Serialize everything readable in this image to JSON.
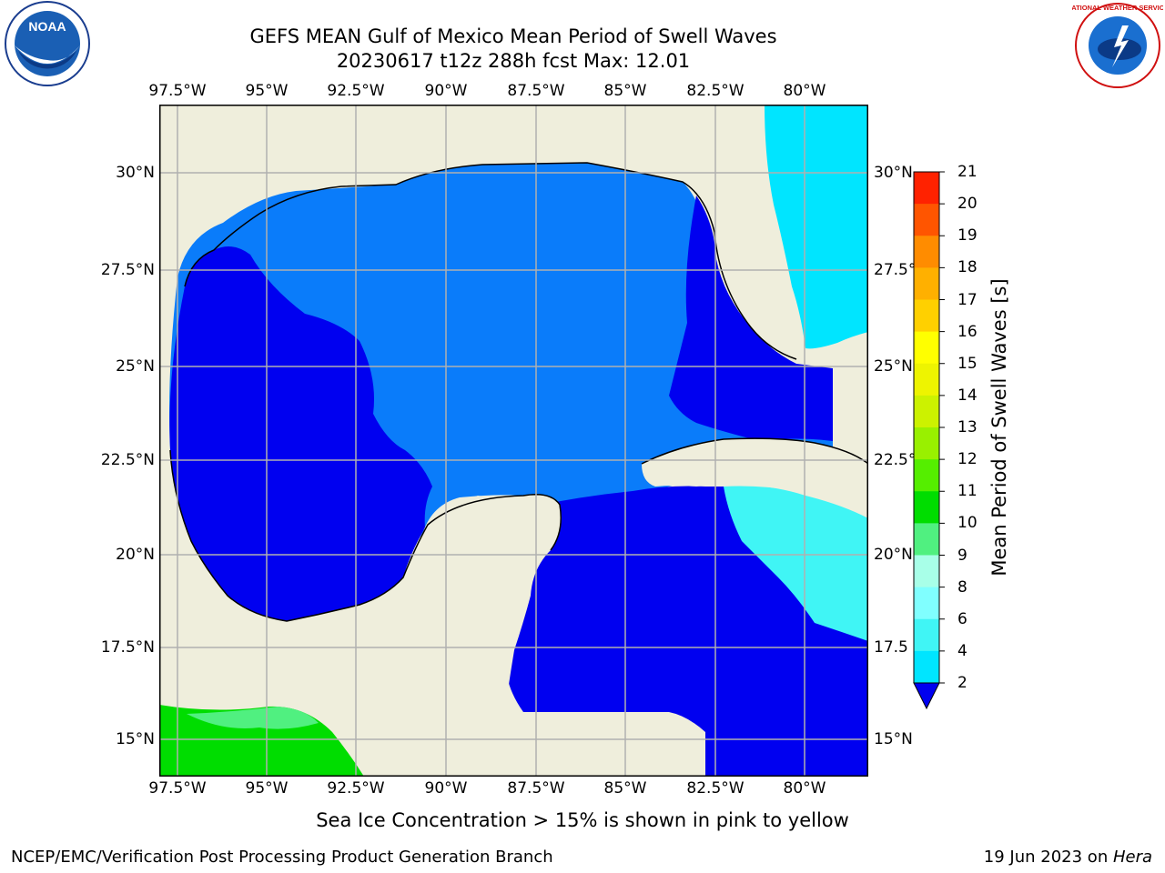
{
  "title_line1": "GEFS MEAN Gulf of Mexico Mean Period of Swell Waves",
  "title_line2": "20230617 t12z 288h fcst   Max: 12.01",
  "logos": {
    "left": "noaa-logo",
    "right": "national-weather-service-logo"
  },
  "logo_text": {
    "noaa": "NOAA",
    "nws": "NATIONAL WEATHER SERVICE"
  },
  "lon_ticks": [
    "97.5°W",
    "95°W",
    "92.5°W",
    "90°W",
    "87.5°W",
    "85°W",
    "82.5°W",
    "80°W"
  ],
  "lat_ticks_left": [
    "30°N",
    "27.5°N",
    "25°N",
    "22.5°N",
    "20°N",
    "17.5°N",
    "15°N"
  ],
  "lat_ticks_right": [
    "30°N",
    "27.5°",
    "25°N",
    "22.5°",
    "20°N",
    "17.5",
    "15°N"
  ],
  "colorbar": {
    "title": "Mean Period of Swell Waves [s]",
    "levels": [
      "2",
      "4",
      "6",
      "8",
      "9",
      "10",
      "11",
      "12",
      "13",
      "14",
      "15",
      "16",
      "17",
      "18",
      "19",
      "20",
      "21"
    ],
    "colors": [
      "#0a7cfa",
      "#00e5ff",
      "#40f5f5",
      "#80ffff",
      "#a8ffe8",
      "#50f080",
      "#00dd00",
      "#55ee00",
      "#99f000",
      "#ccf200",
      "#eef400",
      "#ffff00",
      "#ffd000",
      "#ffb000",
      "#ff8c00",
      "#ff5500",
      "#ff2200",
      "#ff0000"
    ],
    "under_color": "#0000f0"
  },
  "map_colors": {
    "land": "#efeedc",
    "ocean_deep": "#0000f0",
    "ocean_mid": "#0a7cfa",
    "ocean_light": "#00ffff",
    "ocean_green": "#00dd00",
    "grid": "#b0b0b0",
    "coast": "#000000"
  },
  "note": "Sea Ice Concentration > 15% is shown in pink to yellow",
  "footer_left": "NCEP/EMC/Verification Post Processing Product Generation Branch",
  "footer_date": "19 Jun 2023 on ",
  "footer_host": "Hera"
}
